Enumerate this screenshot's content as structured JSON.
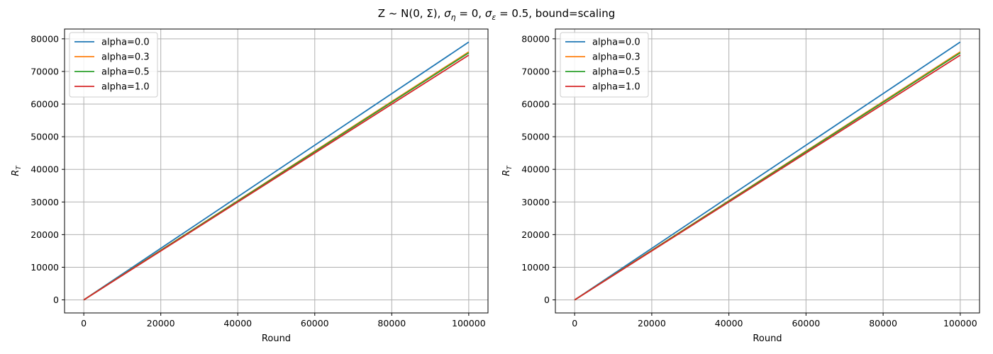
{
  "figure": {
    "title": "Z ~ N(0, Σ), σ_η = 0, σ_ε = 0.5, bound=scaling",
    "title_parts": {
      "prefix": "Z ~ N(0, Σ), ",
      "sigma_eta": "σ",
      "sigma_eta_sub": "η",
      "eta_value": " = 0, ",
      "sigma_eps": "σ",
      "sigma_eps_sub": "ε",
      "eps_value": " = 0.5, bound=scaling"
    }
  },
  "chart_data": [
    {
      "type": "line",
      "xlabel": "Round",
      "ylabel": "R",
      "ylabel_sub": "T",
      "xlim": [
        -5000,
        105000
      ],
      "ylim": [
        -4000,
        83000
      ],
      "xticks": [
        0,
        20000,
        40000,
        60000,
        80000,
        100000
      ],
      "yticks": [
        0,
        10000,
        20000,
        30000,
        40000,
        50000,
        60000,
        70000,
        80000
      ],
      "grid": true,
      "legend_position": "top-left",
      "series": [
        {
          "name": "alpha=0.0",
          "color": "#1f77b4",
          "x": [
            0,
            100000
          ],
          "y": [
            0,
            79000
          ]
        },
        {
          "name": "alpha=0.3",
          "color": "#ff7f0e",
          "x": [
            0,
            100000
          ],
          "y": [
            0,
            76000
          ]
        },
        {
          "name": "alpha=0.5",
          "color": "#2ca02c",
          "x": [
            0,
            100000
          ],
          "y": [
            0,
            75700
          ]
        },
        {
          "name": "alpha=1.0",
          "color": "#d62728",
          "x": [
            0,
            100000
          ],
          "y": [
            0,
            75000
          ]
        }
      ]
    },
    {
      "type": "line",
      "xlabel": "Round",
      "ylabel": "R",
      "ylabel_sub": "T",
      "xlim": [
        -5000,
        105000
      ],
      "ylim": [
        -4000,
        83000
      ],
      "xticks": [
        0,
        20000,
        40000,
        60000,
        80000,
        100000
      ],
      "yticks": [
        0,
        10000,
        20000,
        30000,
        40000,
        50000,
        60000,
        70000,
        80000
      ],
      "grid": true,
      "legend_position": "top-left",
      "series": [
        {
          "name": "alpha=0.0",
          "color": "#1f77b4",
          "x": [
            0,
            100000
          ],
          "y": [
            0,
            79000
          ]
        },
        {
          "name": "alpha=0.3",
          "color": "#ff7f0e",
          "x": [
            0,
            100000
          ],
          "y": [
            0,
            76000
          ]
        },
        {
          "name": "alpha=0.5",
          "color": "#2ca02c",
          "x": [
            0,
            100000
          ],
          "y": [
            0,
            75700
          ]
        },
        {
          "name": "alpha=1.0",
          "color": "#d62728",
          "x": [
            0,
            100000
          ],
          "y": [
            0,
            75000
          ]
        }
      ]
    }
  ]
}
